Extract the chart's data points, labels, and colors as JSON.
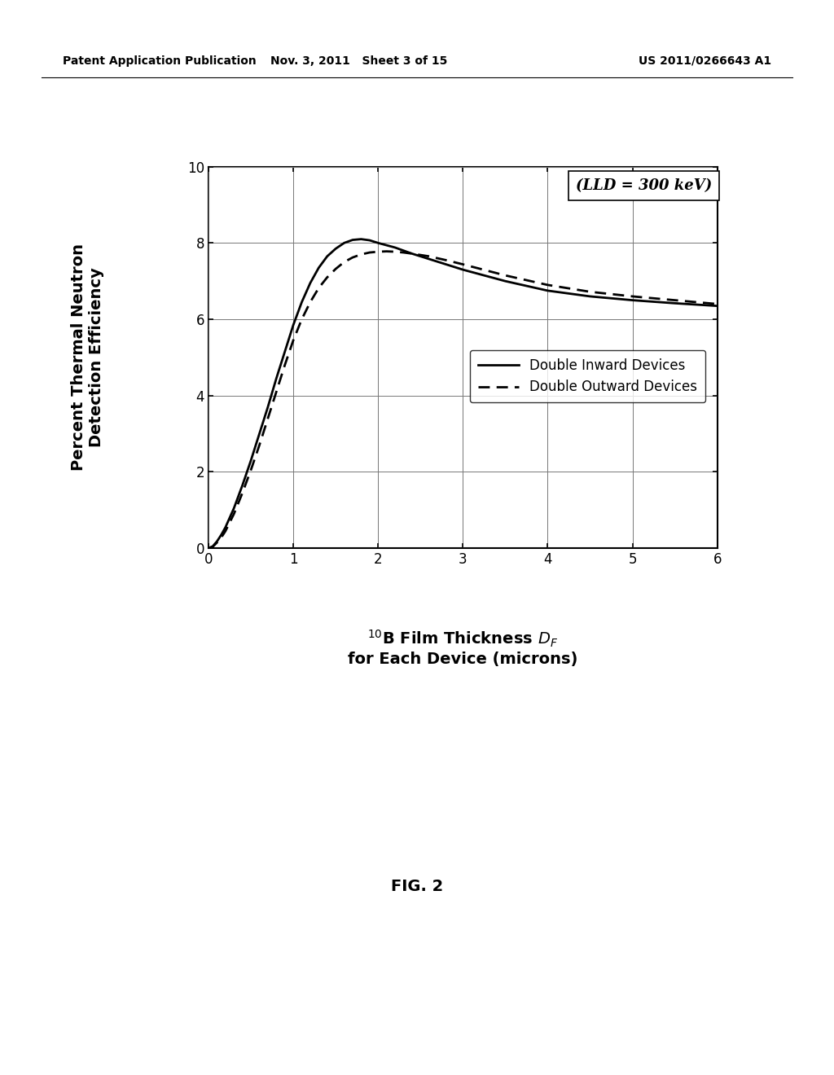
{
  "background_color": "#ffffff",
  "header_left": "Patent Application Publication",
  "header_center": "Nov. 3, 2011   Sheet 3 of 15",
  "header_right": "US 2011/0266643 A1",
  "figure_label": "FIG. 2",
  "annotation_text": "(LLD = 300 keV)",
  "xlabel_line1": "$^{10}$B Film Thickness $D_F$",
  "xlabel_line2": "for Each Device (microns)",
  "ylabel_line1": "Percent Thermal Neutron",
  "ylabel_line2": "Detection Efficiency",
  "xlim": [
    0,
    6
  ],
  "ylim": [
    0,
    10
  ],
  "xticks": [
    0,
    1,
    2,
    3,
    4,
    5,
    6
  ],
  "yticks": [
    0,
    2,
    4,
    6,
    8,
    10
  ],
  "legend_entries": [
    "Double Inward Devices",
    "Double Outward Devices"
  ],
  "inward_x": [
    0.0,
    0.05,
    0.1,
    0.15,
    0.2,
    0.3,
    0.4,
    0.5,
    0.6,
    0.7,
    0.8,
    0.9,
    1.0,
    1.1,
    1.2,
    1.3,
    1.4,
    1.5,
    1.6,
    1.7,
    1.8,
    1.9,
    2.0,
    2.2,
    2.4,
    2.6,
    2.8,
    3.0,
    3.5,
    4.0,
    4.5,
    5.0,
    5.5,
    6.0
  ],
  "inward_y": [
    0.0,
    0.05,
    0.18,
    0.35,
    0.55,
    1.05,
    1.65,
    2.3,
    3.0,
    3.7,
    4.45,
    5.15,
    5.85,
    6.45,
    6.95,
    7.35,
    7.65,
    7.85,
    8.0,
    8.08,
    8.1,
    8.07,
    8.0,
    7.88,
    7.72,
    7.58,
    7.44,
    7.3,
    7.0,
    6.75,
    6.6,
    6.5,
    6.42,
    6.35
  ],
  "outward_x": [
    0.0,
    0.05,
    0.1,
    0.15,
    0.2,
    0.3,
    0.4,
    0.5,
    0.6,
    0.7,
    0.8,
    0.9,
    1.0,
    1.1,
    1.2,
    1.3,
    1.4,
    1.5,
    1.6,
    1.7,
    1.8,
    1.9,
    2.0,
    2.1,
    2.2,
    2.3,
    2.4,
    2.6,
    2.8,
    3.0,
    3.5,
    4.0,
    4.5,
    5.0,
    5.5,
    6.0
  ],
  "outward_y": [
    0.0,
    0.04,
    0.15,
    0.28,
    0.45,
    0.9,
    1.45,
    2.05,
    2.7,
    3.4,
    4.1,
    4.8,
    5.45,
    6.0,
    6.45,
    6.82,
    7.1,
    7.32,
    7.5,
    7.62,
    7.7,
    7.75,
    7.77,
    7.78,
    7.77,
    7.75,
    7.72,
    7.65,
    7.55,
    7.44,
    7.15,
    6.9,
    6.72,
    6.6,
    6.5,
    6.4
  ],
  "line_color": "#000000",
  "linewidth_solid": 2.0,
  "linewidth_dashed": 2.0,
  "grid_color": "#777777",
  "annotation_fontsize": 13,
  "tick_fontsize": 12,
  "label_fontsize": 14,
  "legend_fontsize": 12,
  "header_fontsize": 10
}
